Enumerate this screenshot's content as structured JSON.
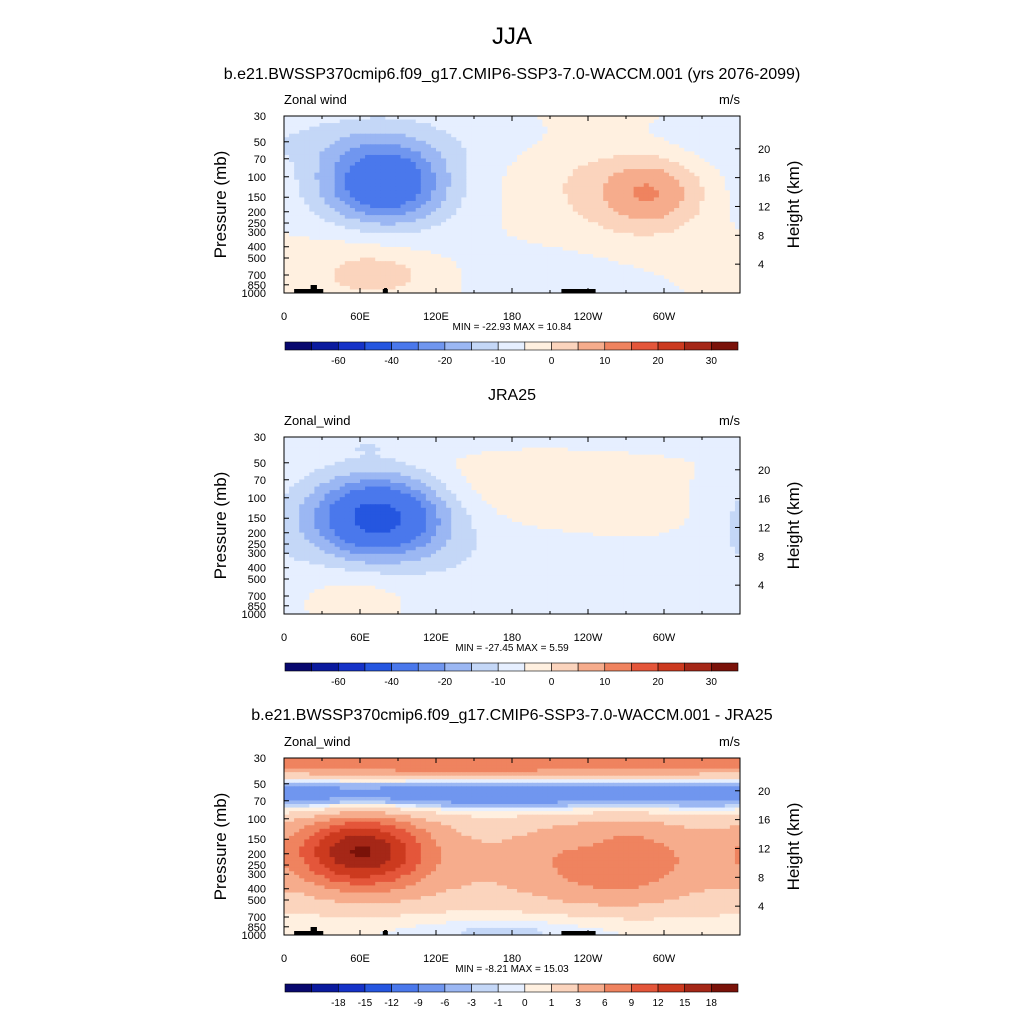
{
  "figure": {
    "title": "JJA",
    "bottom_panel_title": "b.e21.BWSSP370cmip6.f09_g17.CMIP6-SSP3-7.0-WACCM.001 - JRA25"
  },
  "chart_data": [
    {
      "type": "heatmap",
      "title": "b.e21.BWSSP370cmip6.f09_g17.CMIP6-SSP3-7.0-WACCM.001 (yrs 2076-2099)",
      "variable_label": "Zonal wind",
      "units": "m/s",
      "ylabel": "Pressure (mb)",
      "ylabel_right": "Height (km)",
      "x_ticks": [
        "0",
        "60E",
        "120E",
        "180",
        "120W",
        "60W"
      ],
      "x_tick_values": [
        0,
        60,
        120,
        180,
        240,
        300
      ],
      "xlim": [
        0,
        360
      ],
      "y_ticks": [
        "30",
        "50",
        "70",
        "100",
        "150",
        "200",
        "250",
        "300",
        "400",
        "500",
        "700",
        "850",
        "1000"
      ],
      "y_tick_values": [
        30,
        50,
        70,
        100,
        150,
        200,
        250,
        300,
        400,
        500,
        700,
        850,
        1000
      ],
      "ylim": [
        1000,
        30
      ],
      "y_scale": "log",
      "right_ticks": [
        "4",
        "8",
        "12",
        "16",
        "20"
      ],
      "stats": "MIN = -22.93  MAX =  10.84",
      "colorbar": {
        "levels": [
          -70,
          -60,
          -50,
          -40,
          -30,
          -20,
          -15,
          -10,
          -5,
          0,
          5,
          10,
          15,
          20,
          25,
          30,
          35
        ],
        "tick_labels": [
          "-60",
          "-40",
          "-20",
          "-10",
          "0",
          "10",
          "20",
          "30"
        ],
        "tick_levels": [
          -60,
          -40,
          -20,
          -10,
          0,
          10,
          20,
          30
        ]
      },
      "features": [
        {
          "lon": 80,
          "p": 115,
          "value": -22.9,
          "sx": 32,
          "sy": 0.55
        },
        {
          "lon": 70,
          "p": 120,
          "value": -6,
          "sx": 55,
          "sy": 0.9
        },
        {
          "lon": 60,
          "p": 50,
          "value": -3,
          "sx": 90,
          "sy": 0.45
        },
        {
          "lon": 290,
          "p": 140,
          "value": 10.8,
          "sx": 28,
          "sy": 0.5
        },
        {
          "lon": 260,
          "p": 120,
          "value": 6,
          "sx": 55,
          "sy": 0.8
        },
        {
          "lon": 60,
          "p": 500,
          "value": 5,
          "sx": 40,
          "sy": 0.55
        },
        {
          "lon": 75,
          "p": 720,
          "value": 6,
          "sx": 25,
          "sy": 0.25
        },
        {
          "lon": 300,
          "p": 50,
          "value": -2,
          "sx": 70,
          "sy": 0.3
        },
        {
          "lon": 220,
          "p": 650,
          "value": -2,
          "sx": 45,
          "sy": 0.5
        }
      ]
    },
    {
      "type": "heatmap",
      "title": "JRA25",
      "variable_label": "Zonal_wind",
      "units": "m/s",
      "ylabel": "Pressure (mb)",
      "ylabel_right": "Height (km)",
      "x_ticks": [
        "0",
        "60E",
        "120E",
        "180",
        "120W",
        "60W"
      ],
      "x_tick_values": [
        0,
        60,
        120,
        180,
        240,
        300
      ],
      "xlim": [
        0,
        360
      ],
      "y_ticks": [
        "30",
        "50",
        "70",
        "100",
        "150",
        "200",
        "250",
        "300",
        "400",
        "500",
        "700",
        "850",
        "1000"
      ],
      "y_tick_values": [
        30,
        50,
        70,
        100,
        150,
        200,
        250,
        300,
        400,
        500,
        700,
        850,
        1000
      ],
      "ylim": [
        1000,
        30
      ],
      "y_scale": "log",
      "right_ticks": [
        "4",
        "8",
        "12",
        "16",
        "20"
      ],
      "stats": "MIN = -27.45  MAX =   5.59",
      "colorbar": {
        "levels": [
          -70,
          -60,
          -50,
          -40,
          -30,
          -20,
          -15,
          -10,
          -5,
          0,
          5,
          10,
          15,
          20,
          25,
          30,
          35
        ],
        "tick_labels": [
          "-60",
          "-40",
          "-20",
          "-10",
          "0",
          "10",
          "20",
          "30"
        ],
        "tick_levels": [
          -60,
          -40,
          -20,
          -10,
          0,
          10,
          20,
          30
        ]
      },
      "features": [
        {
          "lon": 75,
          "p": 145,
          "value": -27.4,
          "sx": 35,
          "sy": 0.55
        },
        {
          "lon": 70,
          "p": 150,
          "value": -7,
          "sx": 60,
          "sy": 0.8
        },
        {
          "lon": 0,
          "p": 35,
          "value": -3,
          "sx": 400,
          "sy": 0.15
        },
        {
          "lon": 200,
          "p": 80,
          "value": 5.5,
          "sx": 70,
          "sy": 0.6
        },
        {
          "lon": 290,
          "p": 150,
          "value": 3,
          "sx": 30,
          "sy": 0.3
        },
        {
          "lon": 60,
          "p": 650,
          "value": 4,
          "sx": 35,
          "sy": 0.4
        },
        {
          "lon": 200,
          "p": 500,
          "value": -3,
          "sx": 90,
          "sy": 0.9
        },
        {
          "lon": 330,
          "p": 500,
          "value": -2,
          "sx": 35,
          "sy": 0.9
        }
      ]
    },
    {
      "type": "heatmap",
      "title": "",
      "variable_label": "Zonal_wind",
      "units": "m/s",
      "ylabel": "Pressure (mb)",
      "ylabel_right": "Height (km)",
      "x_ticks": [
        "0",
        "60E",
        "120E",
        "180",
        "120W",
        "60W"
      ],
      "x_tick_values": [
        0,
        60,
        120,
        180,
        240,
        300
      ],
      "xlim": [
        0,
        360
      ],
      "y_ticks": [
        "30",
        "50",
        "70",
        "100",
        "150",
        "200",
        "250",
        "300",
        "400",
        "500",
        "700",
        "850",
        "1000"
      ],
      "y_tick_values": [
        30,
        50,
        70,
        100,
        150,
        200,
        250,
        300,
        400,
        500,
        700,
        850,
        1000
      ],
      "ylim": [
        1000,
        30
      ],
      "y_scale": "log",
      "right_ticks": [
        "4",
        "8",
        "12",
        "16",
        "20"
      ],
      "stats": "MIN =  -8.21  MAX =  15.03",
      "colorbar": {
        "levels": [
          -21,
          -18,
          -15,
          -12,
          -9,
          -6,
          -3,
          -1,
          0,
          1,
          3,
          6,
          9,
          12,
          15,
          18,
          21
        ],
        "tick_labels": [
          "-18",
          "-15",
          "-12",
          "-9",
          "-6",
          "-3",
          "-1",
          "0",
          "1",
          "3",
          "6",
          "9",
          "12",
          "15",
          "18"
        ],
        "tick_levels": [
          -18,
          -15,
          -12,
          -9,
          -6,
          -3,
          -1,
          0,
          1,
          3,
          6,
          9,
          12,
          15,
          18
        ]
      },
      "features": [
        {
          "lon": 180,
          "p": 33,
          "value": 11,
          "sx": 400,
          "sy": 0.22
        },
        {
          "lon": 180,
          "p": 62,
          "value": -8,
          "sx": 400,
          "sy": 0.22
        },
        {
          "lon": 60,
          "p": 190,
          "value": 15,
          "sx": 35,
          "sy": 0.5
        },
        {
          "lon": 60,
          "p": 220,
          "value": 5,
          "sx": 85,
          "sy": 0.9
        },
        {
          "lon": 260,
          "p": 230,
          "value": 8,
          "sx": 50,
          "sy": 0.7
        },
        {
          "lon": 200,
          "p": 300,
          "value": 3,
          "sx": 120,
          "sy": 1.2
        },
        {
          "lon": 180,
          "p": 880,
          "value": -3,
          "sx": 90,
          "sy": 0.25
        },
        {
          "lon": 240,
          "p": 160,
          "value": -1,
          "sx": 15,
          "sy": 0.2
        }
      ]
    }
  ]
}
